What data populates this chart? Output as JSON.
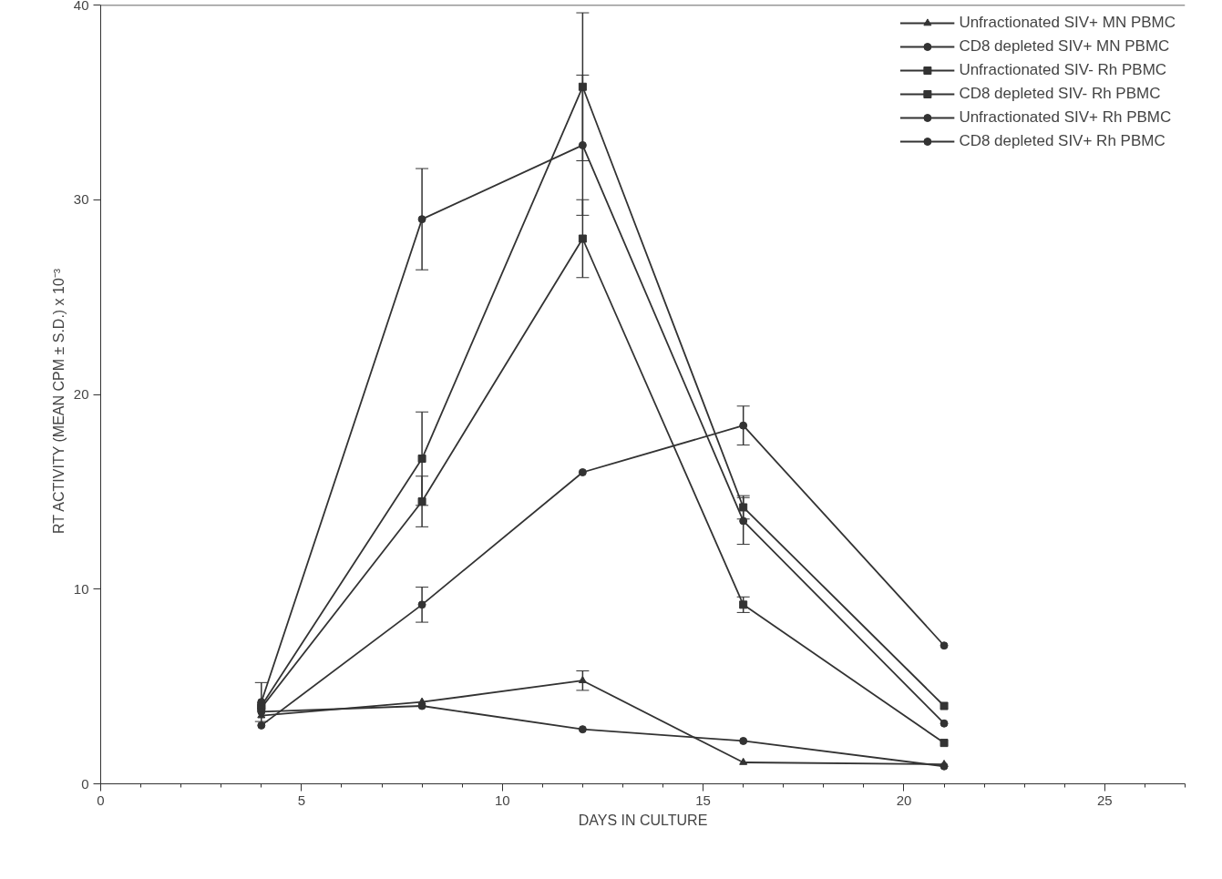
{
  "chart_data": {
    "type": "line",
    "xlabel": "DAYS IN CULTURE",
    "ylabel": "RT ACTIVITY (MEAN CPM ± S.D.)    x 10⁻³",
    "xlim": [
      0,
      27
    ],
    "ylim": [
      0,
      40
    ],
    "xticks": [
      0,
      5,
      10,
      15,
      20,
      25
    ],
    "yticks": [
      0,
      10,
      20,
      30,
      40
    ],
    "grid": false,
    "legend": "top right",
    "line_style": "solid",
    "x": [
      4,
      8,
      12,
      16,
      21
    ],
    "series": [
      {
        "name": "Unfractionated SIV+ MN PBMC",
        "color": "#333333",
        "marker": "triangle",
        "values": [
          3.5,
          4.2,
          5.3,
          1.1,
          1.0
        ],
        "errors": [
          null,
          null,
          0.5,
          null,
          null
        ]
      },
      {
        "name": "CD8 depleted SIV+ MN PBMC",
        "color": "#333333",
        "marker": "circle",
        "values": [
          3.0,
          9.2,
          16.0,
          18.4,
          7.1
        ],
        "errors": [
          null,
          0.9,
          null,
          1.0,
          null
        ]
      },
      {
        "name": "Unfractionated SIV- Rh PBMC",
        "color": "#333333",
        "marker": "square",
        "values": [
          3.9,
          14.5,
          28.0,
          9.2,
          2.1
        ],
        "errors": [
          null,
          1.3,
          2.0,
          0.4,
          null
        ]
      },
      {
        "name": "CD8 depleted SIV- Rh PBMC",
        "color": "#333333",
        "marker": "square",
        "values": [
          4.0,
          16.7,
          35.8,
          14.2,
          4.0
        ],
        "errors": [
          null,
          2.4,
          3.8,
          0.6,
          null
        ]
      },
      {
        "name": "Unfractionated SIV+ Rh PBMC",
        "color": "#333333",
        "marker": "circle",
        "values": [
          3.7,
          4.0,
          2.8,
          2.2,
          0.9
        ]
      },
      {
        "name": "CD8 depleted SIV+ Rh PBMC",
        "color": "#333333",
        "marker": "circle",
        "values": [
          4.2,
          29.0,
          32.8,
          13.5,
          3.1
        ],
        "errors": [
          1.0,
          2.6,
          3.6,
          1.2,
          null
        ]
      }
    ]
  }
}
